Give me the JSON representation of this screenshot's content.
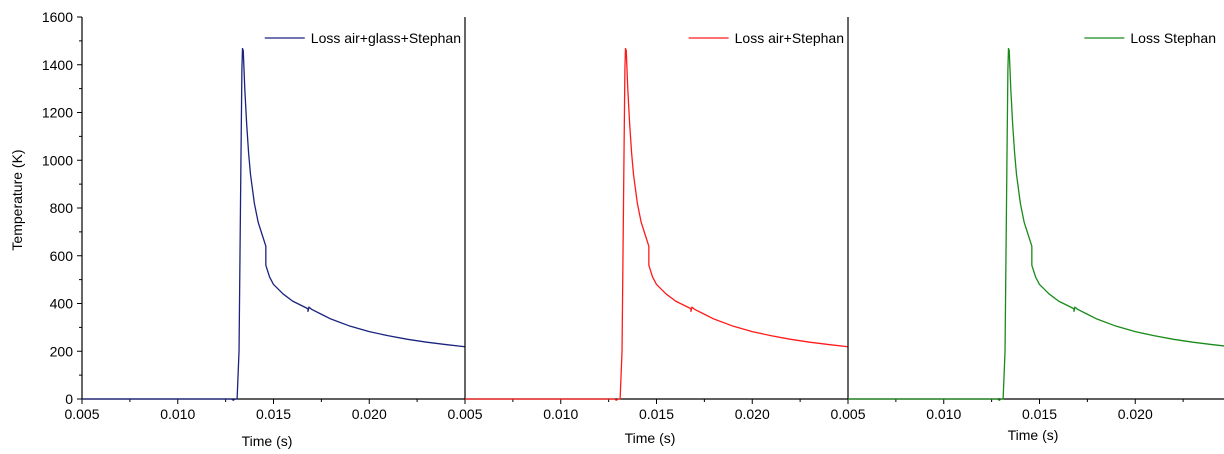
{
  "chart_data": [
    {
      "type": "line",
      "xlabel": "Time (s)",
      "ylabel": "Temperature (K)",
      "xlim": [
        0.005,
        0.025
      ],
      "ylim": [
        0,
        1600
      ],
      "xticks": [
        "0.005",
        "0.010",
        "0.015",
        "0.020"
      ],
      "yticks": [
        "0",
        "200",
        "400",
        "600",
        "800",
        "1000",
        "1200",
        "1400",
        "1600"
      ],
      "legend_position": "top-right",
      "series": [
        {
          "name": "Loss air+glass+Stephan",
          "color": "#1a237e",
          "x": [
            0.005,
            0.0128,
            0.0129,
            0.013,
            0.0131,
            0.0132,
            0.0133,
            0.01335,
            0.01338,
            0.01342,
            0.0135,
            0.0136,
            0.0137,
            0.0138,
            0.014,
            0.0142,
            0.0144,
            0.0146,
            0.0146,
            0.0148,
            0.015,
            0.0155,
            0.016,
            0.0165,
            0.0168,
            0.0168,
            0.01685,
            0.017,
            0.0175,
            0.018,
            0.019,
            0.02,
            0.021,
            0.022,
            0.023,
            0.024,
            0.025
          ],
          "y": [
            0,
            0,
            -5,
            0,
            0,
            200,
            1000,
            1380,
            1468,
            1460,
            1300,
            1150,
            1030,
            940,
            820,
            740,
            690,
            640,
            560,
            510,
            480,
            440,
            410,
            390,
            378,
            367,
            385,
            375,
            355,
            335,
            305,
            282,
            265,
            250,
            238,
            228,
            219
          ]
        },
        {
          "name": "Loss air+Stephan",
          "color": "#ff1a1a",
          "x": [
            0.005,
            0.0128,
            0.0129,
            0.013,
            0.0131,
            0.0132,
            0.0133,
            0.01335,
            0.01338,
            0.01342,
            0.0135,
            0.0136,
            0.0137,
            0.0138,
            0.014,
            0.0142,
            0.0144,
            0.0146,
            0.0146,
            0.0148,
            0.015,
            0.0155,
            0.016,
            0.0165,
            0.0168,
            0.0168,
            0.01685,
            0.017,
            0.0175,
            0.018,
            0.019,
            0.02,
            0.021,
            0.022,
            0.023,
            0.024,
            0.025
          ],
          "y": [
            0,
            0,
            -5,
            0,
            0,
            200,
            1000,
            1380,
            1468,
            1460,
            1300,
            1150,
            1030,
            940,
            820,
            740,
            690,
            640,
            560,
            510,
            480,
            440,
            410,
            390,
            378,
            367,
            385,
            375,
            355,
            335,
            305,
            282,
            265,
            250,
            238,
            228,
            219
          ]
        },
        {
          "name": "Loss Stephan",
          "color": "#1a8a1a",
          "x": [
            0.005,
            0.0128,
            0.0129,
            0.013,
            0.0131,
            0.0132,
            0.0133,
            0.01335,
            0.01338,
            0.01342,
            0.0135,
            0.0136,
            0.0137,
            0.0138,
            0.014,
            0.0142,
            0.0144,
            0.0146,
            0.0146,
            0.0148,
            0.015,
            0.0155,
            0.016,
            0.0165,
            0.0168,
            0.0168,
            0.01685,
            0.017,
            0.0175,
            0.018,
            0.019,
            0.02,
            0.021,
            0.022,
            0.023,
            0.024,
            0.025
          ],
          "y": [
            0,
            0,
            -5,
            0,
            0,
            200,
            1000,
            1380,
            1468,
            1460,
            1300,
            1150,
            1030,
            940,
            820,
            740,
            690,
            640,
            560,
            510,
            480,
            440,
            410,
            390,
            378,
            367,
            385,
            375,
            355,
            335,
            305,
            282,
            265,
            250,
            238,
            228,
            219
          ]
        }
      ]
    }
  ]
}
